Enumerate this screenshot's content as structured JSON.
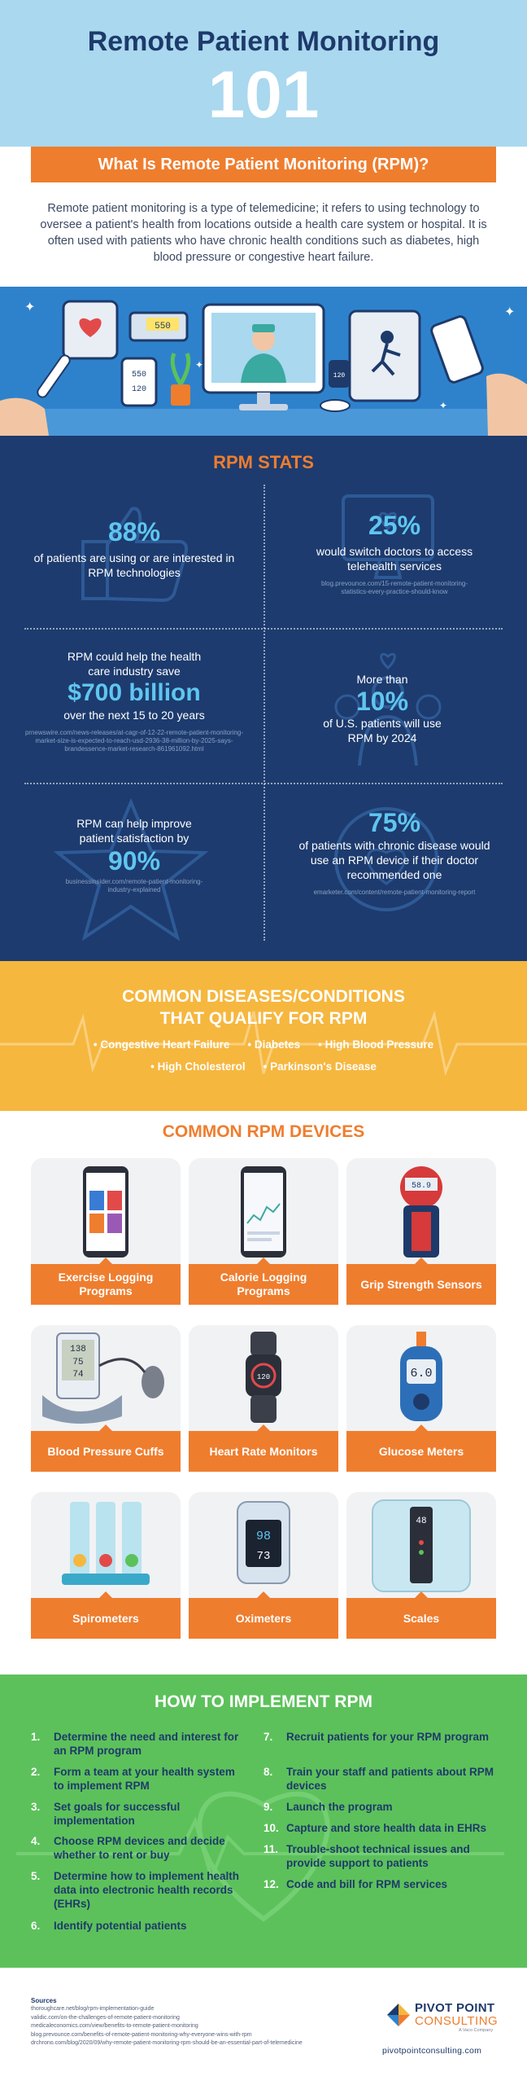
{
  "header": {
    "title": "Remote Patient Monitoring",
    "number": "101",
    "question": "What Is Remote Patient Monitoring (RPM)?",
    "intro": "Remote patient monitoring is a type of telemedicine; it refers to using technology to oversee a patient's health from locations outside a health care system or hospital. It is often used with patients who have chronic health conditions such as diabetes, high blood pressure or congestive heart failure."
  },
  "hero": {
    "scale_reading": "550",
    "monitor_reading_top": "550",
    "monitor_reading_bottom": "120",
    "watch_reading": "120"
  },
  "stats": {
    "title": "RPM STATS",
    "items": [
      {
        "big": "88%",
        "text": "of patients are using or are interested in RPM technologies",
        "source": ""
      },
      {
        "big": "25%",
        "text": "would switch doctors to access telehealth services",
        "source": "blog.prevounce.com/15-remote-patient-monitoring-statistics-every-practice-should-know"
      },
      {
        "pre": "RPM could help the health care industry save",
        "big": "$700 billion",
        "text": "over the next 15 to 20 years",
        "source": "prnewswire.com/news-releases/at-cagr-of-12-22-remote-patient-monitoring-market-size-is-expected-to-reach-usd-2936-38-million-by-2025-says-brandessence-market-research-861961092.html"
      },
      {
        "pre": "More than",
        "big": "10%",
        "text": "of U.S. patients will use RPM by 2024",
        "source": ""
      },
      {
        "pre": "RPM can help improve patient satisfaction by",
        "big": "90%",
        "text": "",
        "source": "businessinsider.com/remote-patient-monitoring-industry-explained"
      },
      {
        "big": "75%",
        "text": "of patients with chronic disease would use an RPM device if their doctor recommended one",
        "source": "emarketer.com/content/remote-patient-monitoring-report"
      }
    ]
  },
  "diseases": {
    "title_line1": "COMMON DISEASES/CONDITIONS",
    "title_line2": "THAT QUALIFY FOR RPM",
    "row1": [
      "Congestive Heart Failure",
      "Diabetes",
      "High Blood Pressure"
    ],
    "row2": [
      "High Cholesterol",
      "Parkinson's Disease"
    ]
  },
  "devices": {
    "title": "COMMON RPM DEVICES",
    "items": [
      {
        "label": "Exercise Logging Programs"
      },
      {
        "label": "Calorie Logging Programs"
      },
      {
        "label": "Grip Strength Sensors",
        "reading": "58.9"
      },
      {
        "label": "Blood Pressure Cuffs",
        "reading_top": "138",
        "reading_mid": "75",
        "reading_bottom": "74"
      },
      {
        "label": "Heart Rate Monitors",
        "reading": "120"
      },
      {
        "label": "Glucose Meters",
        "reading": "6.0"
      },
      {
        "label": "Spirometers"
      },
      {
        "label": "Oximeters",
        "reading_top": "98",
        "reading_bottom": "73"
      },
      {
        "label": "Scales",
        "reading": "48"
      }
    ]
  },
  "howto": {
    "title": "HOW TO IMPLEMENT RPM",
    "steps": [
      {
        "n": "1.",
        "t": "Determine the need and interest for an RPM program"
      },
      {
        "n": "2.",
        "t": "Form a team at your health system to implement RPM"
      },
      {
        "n": "3.",
        "t": "Set goals for successful implementation"
      },
      {
        "n": "4.",
        "t": "Choose RPM devices and decide whether to rent or buy"
      },
      {
        "n": "5.",
        "t": "Determine how to implement health data into electronic health records (EHRs)"
      },
      {
        "n": "6.",
        "t": "Identify potential patients"
      },
      {
        "n": "7.",
        "t": "Recruit patients for your RPM program"
      },
      {
        "n": "8.",
        "t": "Train your staff and patients about RPM devices"
      },
      {
        "n": "9.",
        "t": "Launch the program"
      },
      {
        "n": "10.",
        "t": "Capture and store health data in EHRs"
      },
      {
        "n": "11.",
        "t": "Trouble-shoot technical issues and provide support to patients"
      },
      {
        "n": "12.",
        "t": "Code and bill for RPM services"
      }
    ]
  },
  "footer": {
    "sources_heading": "Sources",
    "sources": [
      "thoroughcare.net/blog/rpm-implementation-guide",
      "validic.com/on-the-challenges-of-remote-patient-monitoring",
      "medicaleconomics.com/view/benefits-to-remote-patient-monitoring",
      "blog.prevounce.com/benefits-of-remote-patient-monitoring-why-everyone-wins-with-rpm",
      "drchrono.com/blog/2020/09/why-remote-patient-monitoring-rpm-should-be-an-essential-part-of-telemedicine"
    ],
    "logo_name": "PIVOT POINT",
    "logo_sub": "CONSULTING",
    "logo_tag": "A Vaco Company",
    "website": "pivotpointconsulting.com"
  }
}
